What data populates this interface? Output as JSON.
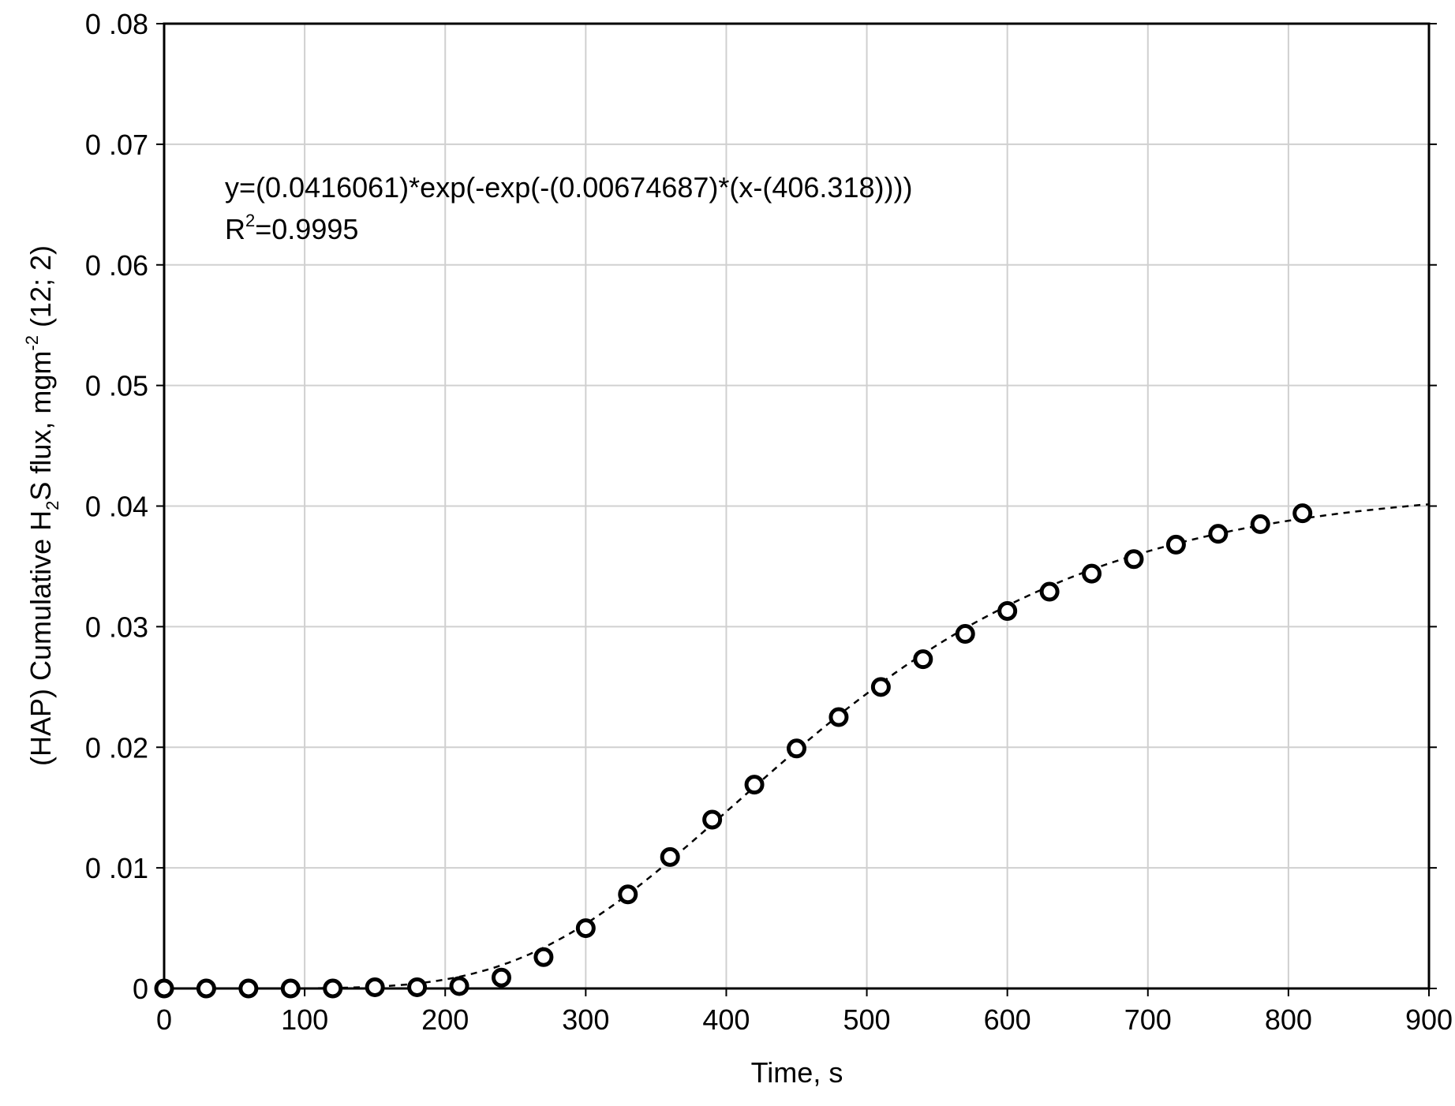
{
  "chart_data": {
    "type": "scatter",
    "xlabel": "Time, s",
    "ylabel": {
      "prefix": "(HAP) Cumulative H",
      "sub": "2",
      "mid": "S flux, mgm",
      "sup": "-2",
      "suffix": " (12; 2)"
    },
    "xlim": [
      0,
      900
    ],
    "ylim": [
      0,
      0.08
    ],
    "x_ticks": [
      0,
      100,
      200,
      300,
      400,
      500,
      600,
      700,
      800,
      900
    ],
    "x_tick_labels": [
      "0",
      "100",
      "200",
      "300",
      "400",
      "500",
      "600",
      "700",
      "800",
      "900"
    ],
    "y_ticks": [
      0,
      0.01,
      0.02,
      0.03,
      0.04,
      0.05,
      0.06,
      0.07,
      0.08
    ],
    "y_tick_labels": [
      "0",
      "0 .01",
      "0 .02",
      "0 .03",
      "0 .04",
      "0 .05",
      "0 .06",
      "0 .07",
      "0 .08"
    ],
    "grid": true,
    "annotation": {
      "equation": "y=(0.0416061)*exp(-exp(-(0.00674687)*(x-(406.318))))",
      "r2_prefix": "R",
      "r2_sup": "2",
      "r2_value": "=0.9995"
    },
    "fit": {
      "model": "gompertz",
      "a": 0.0416061,
      "b": 0.00674687,
      "c": 406.318,
      "style": "dashed",
      "color": "#000000"
    },
    "series": [
      {
        "marker": "open-circle",
        "color": "#000000",
        "x": [
          0,
          30,
          60,
          90,
          120,
          150,
          180,
          210,
          240,
          270,
          300,
          330,
          360,
          390,
          420,
          450,
          480,
          510,
          540,
          570,
          600,
          630,
          660,
          690,
          720,
          750,
          780,
          810
        ],
        "y": [
          0.0,
          0.0,
          0.0,
          0.0,
          0.0,
          0.0001,
          0.0001,
          0.0002,
          0.0009,
          0.0026,
          0.005,
          0.0078,
          0.0109,
          0.014,
          0.0169,
          0.0199,
          0.0225,
          0.025,
          0.0273,
          0.0294,
          0.0313,
          0.0329,
          0.0344,
          0.0356,
          0.0368,
          0.0377,
          0.0385,
          0.0394
        ]
      }
    ]
  }
}
